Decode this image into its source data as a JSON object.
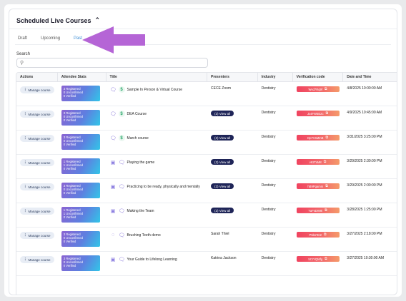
{
  "header": {
    "title": "Scheduled Live Courses",
    "chevron": "chevron-up-icon"
  },
  "tabs": [
    {
      "label": "Draft"
    },
    {
      "label": "Upcoming"
    },
    {
      "label": "Past"
    }
  ],
  "active_tab": "Past",
  "search": {
    "label": "Search",
    "placeholder": "",
    "icon": "search-icon"
  },
  "table": {
    "columns": [
      "Actions",
      "Attendee Stats",
      "Title",
      "Presenters",
      "Industry",
      "Verification code",
      "Date and Time"
    ],
    "rows": [
      {
        "action": "Manage course",
        "stats": [
          "3 Registered",
          "0 Unconfirmed",
          "0 Verified"
        ],
        "icons": [
          "bubble",
          "dollar"
        ],
        "title": "Sample In Person & Virtual Course",
        "presenter": "CECE Zoom",
        "presenter_type": "text",
        "industry": "Dentistry",
        "code": "Wvd7Rq9f",
        "datetime": "4/8/2025 10:00:00 AM"
      },
      {
        "action": "Manage course",
        "stats": [
          "3 Registered",
          "0 Unconfirmed",
          "0 Verified"
        ],
        "icons": [
          "bubble",
          "dollar"
        ],
        "title": "DEA Course",
        "presenter": "(2) View all",
        "presenter_type": "button",
        "industry": "Dentistry",
        "code": "Jx4FW5E2c",
        "datetime": "4/9/2025 10:45:00 AM"
      },
      {
        "action": "Manage course",
        "stats": [
          "3 Registered",
          "0 Unconfirmed",
          "0 Verified"
        ],
        "icons": [
          "bubble",
          "dollar"
        ],
        "title": "March course",
        "presenter": "(2) View all",
        "presenter_type": "button",
        "industry": "Dentistry",
        "code": "Dp7VsMmB",
        "datetime": "3/31/2025 3:25:00 PM"
      },
      {
        "action": "Manage course",
        "stats": [
          "1 Registered",
          "1 Unconfirmed",
          "0 Verified"
        ],
        "icons": [
          "cam",
          "bubble"
        ],
        "title": "Playing the game",
        "presenter": "(2) View all",
        "presenter_type": "button",
        "industry": "Dentistry",
        "code": "v62TaM8",
        "datetime": "3/29/2025 2:30:00 PM"
      },
      {
        "action": "Manage course",
        "stats": [
          "3 Registered",
          "0 Unconfirmed",
          "0 Verified"
        ],
        "icons": [
          "cam",
          "bubble"
        ],
        "title": "Practicing to be ready, physically and mentally",
        "presenter": "(2) View all",
        "presenter_type": "button",
        "industry": "Dentistry",
        "code": "hB9Pgamm",
        "datetime": "3/29/2025 2:00:00 PM"
      },
      {
        "action": "Manage course",
        "stats": [
          "1 Registered",
          "1 Unconfirmed",
          "0 Verified"
        ],
        "icons": [
          "cam",
          "bubble"
        ],
        "title": "Making the Team",
        "presenter": "(2) View all",
        "presenter_type": "button",
        "industry": "Dentistry",
        "code": "YaFsDW9i",
        "datetime": "3/28/2025 1:25:00 PM"
      },
      {
        "action": "Manage course",
        "stats": [
          "3 Registered",
          "0 Unconfirmed",
          "0 Verified"
        ],
        "icons": [
          "spin",
          "bubble"
        ],
        "title": "Brushing Teeth demo",
        "presenter": "Sarah Thiel",
        "presenter_type": "text",
        "industry": "Dentistry",
        "code": "P5bsTeI2",
        "datetime": "3/27/2025 2:18:00 PM"
      },
      {
        "action": "Manage course",
        "stats": [
          "3 Registered",
          "0 Unconfirmed",
          "0 Verified"
        ],
        "icons": [
          "cam",
          "bubble"
        ],
        "title": "Your Guide to Lifelong Learning",
        "presenter": "Katrina Jackson",
        "presenter_type": "text",
        "industry": "Dentistry",
        "code": "5CrYQMfg",
        "datetime": "3/27/2025 10:30:00 AM"
      }
    ]
  },
  "colors": {
    "accent": "#3e8ed6",
    "arrow": "#b565d6",
    "view_all": "#1f2558",
    "verification": "#f0435f"
  }
}
